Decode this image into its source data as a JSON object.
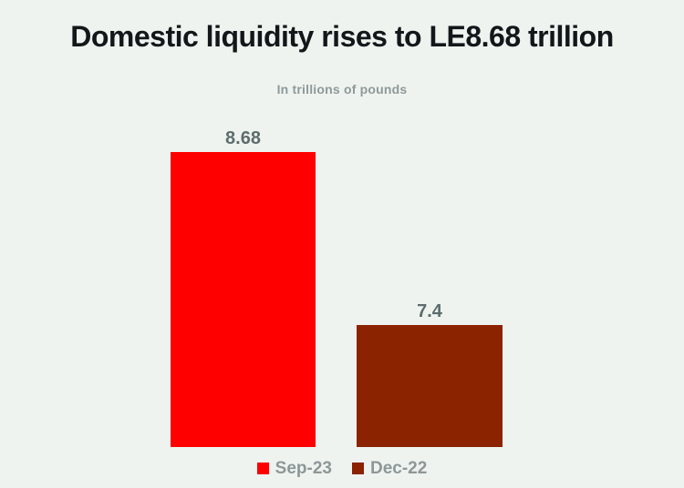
{
  "chart_data": {
    "type": "bar",
    "title": "Domestic liquidity rises to LE8.68 trillion",
    "subtitle": "In trillions of pounds",
    "categories": [
      "Sep-23",
      "Dec-22"
    ],
    "values": [
      8.68,
      7.4
    ],
    "value_labels": [
      "8.68",
      "7.4"
    ],
    "series_colors": [
      "#fe0000",
      "#8b2200"
    ],
    "legend": [
      {
        "label": "Sep-23",
        "color": "#fe0000"
      },
      {
        "label": "Dec-22",
        "color": "#8b2200"
      }
    ],
    "legend_position": "bottom",
    "grid": false,
    "axes_visible": false,
    "ylim": [
      6.5,
      8.68
    ],
    "xlabel": "",
    "ylabel": ""
  },
  "colors": {
    "background": "#eff3f0",
    "title_text": "#13171a",
    "subtitle_text": "#8e9999",
    "value_label_text": "#5d6c6c",
    "legend_text": "#8d9797"
  }
}
